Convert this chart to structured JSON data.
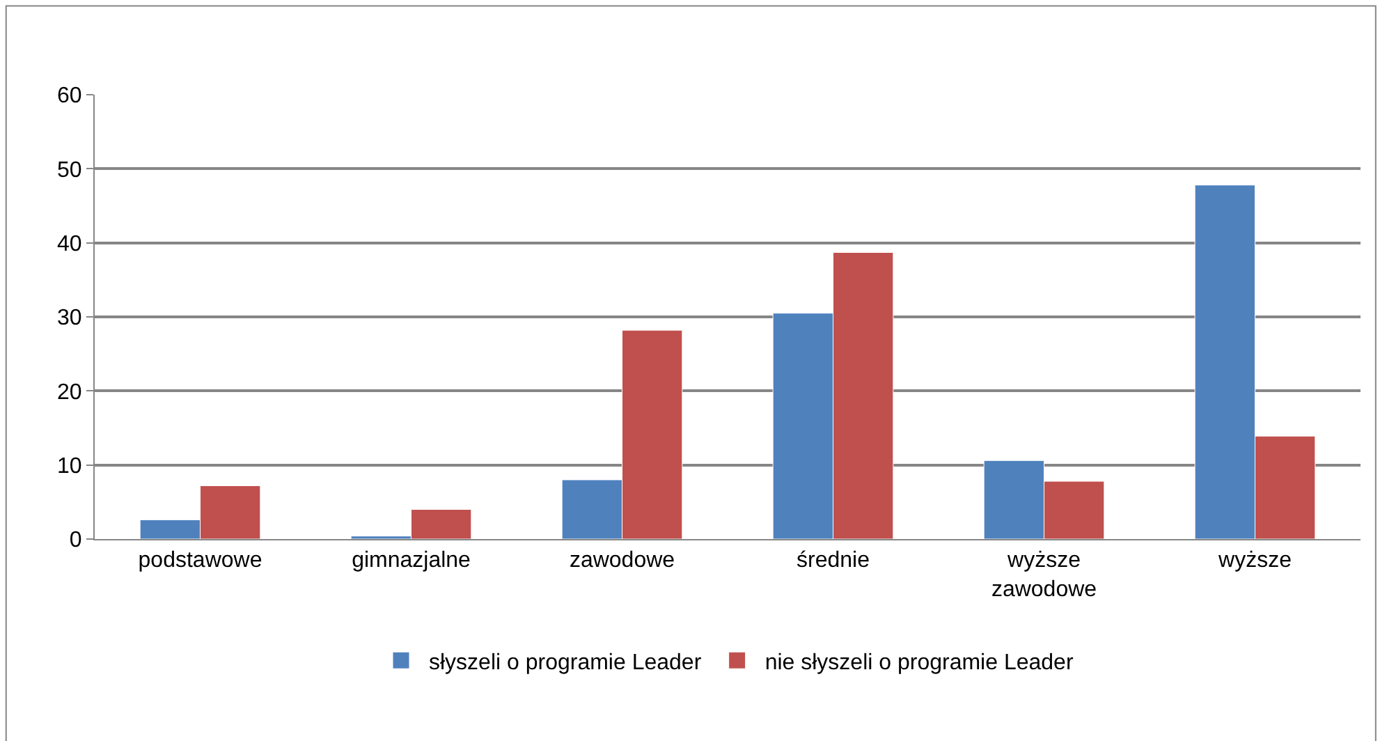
{
  "chart_data": {
    "type": "bar",
    "categories": [
      "podstawowe",
      "gimnazjalne",
      "zawodowe",
      "średnie",
      "wyższe\nzawodowe",
      "wyższe"
    ],
    "series": [
      {
        "name": "słyszeli o programie Leader",
        "color": "#4f81bd",
        "values": [
          2.6,
          0.4,
          8.0,
          30.5,
          10.6,
          47.8
        ]
      },
      {
        "name": "nie słyszeli o programie Leader",
        "color": "#c0504d",
        "values": [
          7.2,
          4.0,
          28.2,
          38.7,
          7.8,
          13.9
        ]
      }
    ],
    "ylim": [
      0,
      60
    ],
    "yticks": [
      0,
      10,
      20,
      30,
      40,
      50,
      60
    ],
    "grid": "y",
    "legend": "bottom"
  }
}
